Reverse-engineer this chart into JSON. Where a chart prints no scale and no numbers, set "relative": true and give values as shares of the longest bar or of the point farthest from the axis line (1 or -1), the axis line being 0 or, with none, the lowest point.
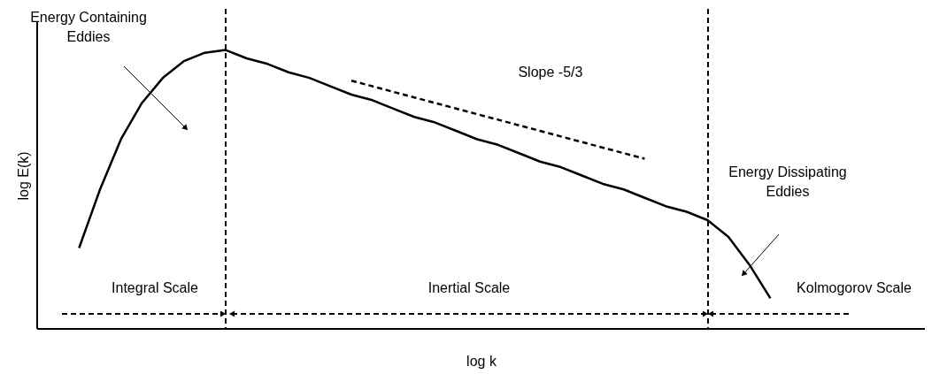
{
  "chart_data": {
    "type": "line",
    "xlabel": "log k",
    "ylabel": "log E(k)",
    "relative": true,
    "tick_labels": false,
    "categories": [
      null,
      null,
      null,
      null,
      null,
      null,
      null,
      null,
      null,
      null,
      null,
      null,
      null,
      null,
      null,
      null,
      null,
      null,
      null,
      null,
      null,
      null,
      null,
      null,
      null,
      null,
      null,
      null,
      null,
      null,
      null,
      null,
      null,
      null,
      null,
      null,
      null,
      null,
      null,
      null,
      null,
      null,
      null
    ],
    "series": [
      {
        "color": "#000000",
        "line_style": "solid",
        "values": [
          null,
          null,
          0.29,
          0.5,
          0.68,
          0.81,
          0.9,
          0.96,
          0.99,
          1.0,
          0.97,
          0.95,
          0.92,
          0.9,
          0.87,
          0.84,
          0.82,
          0.79,
          0.76,
          0.74,
          0.71,
          0.68,
          0.66,
          0.63,
          0.6,
          0.58,
          0.55,
          0.52,
          0.5,
          0.47,
          0.44,
          0.42,
          0.39,
          0.33,
          0.23,
          0.11,
          null,
          null,
          null,
          null,
          null,
          null,
          null
        ]
      },
      {
        "name": "Slope -5/3",
        "color": "#000000",
        "line_style": "dashed",
        "values": [
          null,
          null,
          null,
          null,
          null,
          null,
          null,
          null,
          null,
          null,
          null,
          null,
          null,
          null,
          null,
          0.89,
          0.87,
          0.85,
          0.83,
          0.81,
          0.79,
          0.77,
          0.75,
          0.73,
          0.71,
          0.69,
          0.67,
          0.65,
          0.63,
          0.61,
          null,
          null,
          null,
          null,
          null,
          null,
          null,
          null,
          null,
          null,
          null,
          null,
          null
        ]
      }
    ],
    "annotations": [
      "Energy Containing Eddies",
      "Energy Dissipating Eddies",
      "Integral Scale",
      "Inertial Scale",
      "Kolmogorov Scale"
    ]
  }
}
